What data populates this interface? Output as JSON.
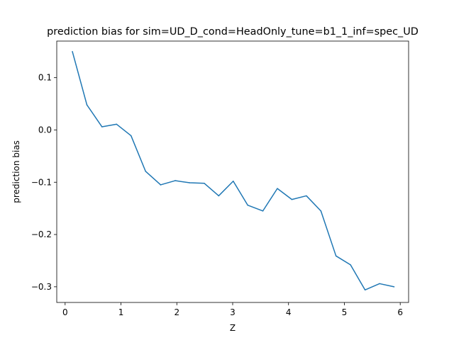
{
  "chart_data": {
    "type": "line",
    "title": "prediction bias for sim=UD_D_cond=HeadOnly_tune=b1_1_inf=spec_UD",
    "xlabel": "Z",
    "ylabel": "prediction bias",
    "xlim": [
      -0.15,
      6.15
    ],
    "ylim": [
      -0.33,
      0.17
    ],
    "xticks": [
      0,
      1,
      2,
      3,
      4,
      5,
      6
    ],
    "yticks": [
      -0.3,
      -0.2,
      -0.1,
      0.0,
      0.1
    ],
    "ytick_labels": [
      "−0.3",
      "−0.2",
      "−0.1",
      "0.0",
      "0.1"
    ],
    "grid": false,
    "legend": "none",
    "series": [
      {
        "color": "#1f77b4",
        "x": [
          0.13,
          0.39,
          0.66,
          0.92,
          1.18,
          1.44,
          1.71,
          1.97,
          2.23,
          2.49,
          2.75,
          3.01,
          3.27,
          3.54,
          3.8,
          4.06,
          4.32,
          4.58,
          4.85,
          5.11,
          5.37,
          5.63,
          5.89
        ],
        "y": [
          0.15,
          0.048,
          0.006,
          0.011,
          -0.011,
          -0.079,
          -0.105,
          -0.097,
          -0.101,
          -0.102,
          -0.126,
          -0.098,
          -0.144,
          -0.155,
          -0.112,
          -0.133,
          -0.126,
          -0.155,
          -0.241,
          -0.258,
          -0.306,
          -0.294,
          -0.3
        ]
      }
    ]
  }
}
